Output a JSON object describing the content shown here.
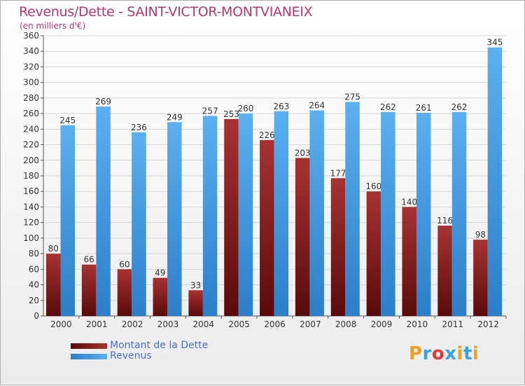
{
  "chart_data": {
    "type": "bar",
    "title": "Revenus/Dette - SAINT-VICTOR-MONTVIANEIX",
    "subtitle": "(en milliers d'€)",
    "xlabel": "",
    "ylabel": "",
    "ylim": [
      0,
      360
    ],
    "ytick_step": 20,
    "grid": true,
    "categories": [
      "2000",
      "2001",
      "2002",
      "2003",
      "2004",
      "2005",
      "2006",
      "2007",
      "2008",
      "2009",
      "2010",
      "2011",
      "2012"
    ],
    "series": [
      {
        "name": "Montant de la Dette",
        "color": "#8b1a1a",
        "values": [
          80,
          66,
          60,
          49,
          33,
          253,
          226,
          203,
          177,
          160,
          140,
          116,
          98
        ]
      },
      {
        "name": "Revenus",
        "color": "#4aa3e8",
        "values": [
          245,
          269,
          236,
          249,
          257,
          260,
          263,
          264,
          275,
          262,
          261,
          262,
          345
        ]
      }
    ],
    "legend_position": "bottom-left"
  },
  "logo": {
    "letters": [
      "P",
      "r",
      "o",
      "x",
      "i",
      "t",
      "i"
    ],
    "colors": [
      "#f0a020",
      "#3aa0e0",
      "#e03a3a",
      "#3aa0e0",
      "#f0a020",
      "#3aa0e0",
      "#f0a020"
    ]
  }
}
